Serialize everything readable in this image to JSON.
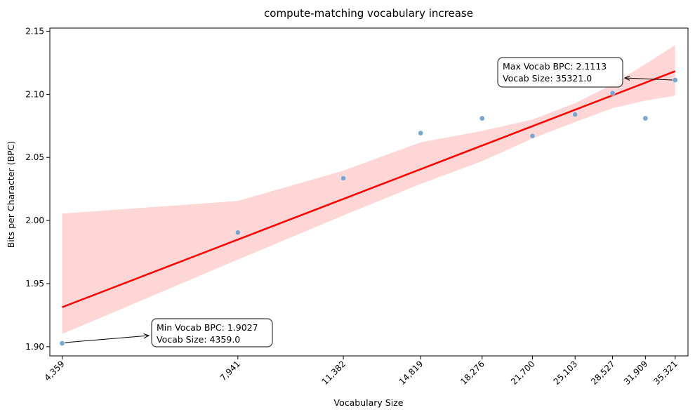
{
  "chart_data": {
    "type": "scatter",
    "title": "compute-matching vocabulary increase",
    "xlabel": "Vocabulary Size",
    "ylabel": "Bits per Character (BPC)",
    "x_scale": "log",
    "xlim": [
      4180,
      36900
    ],
    "ylim": [
      1.8927,
      2.1525
    ],
    "x_ticks": [
      4359,
      7941,
      11382,
      14819,
      18276,
      21700,
      25103,
      28527,
      31909,
      35321
    ],
    "x_tick_labels": [
      "4,359",
      "7,941",
      "11,382",
      "14,819",
      "18,276",
      "21,700",
      "25,103",
      "28,527",
      "31,909",
      "35,321"
    ],
    "y_ticks": [
      1.9,
      1.95,
      2.0,
      2.05,
      2.1,
      2.15
    ],
    "y_tick_labels": [
      "1.90",
      "1.95",
      "2.00",
      "2.05",
      "2.10",
      "2.15"
    ],
    "grid": false,
    "series": [
      {
        "type": "scatter",
        "color": "#6a9fca",
        "points": [
          {
            "x": 4359,
            "y": 1.9027
          },
          {
            "x": 7941,
            "y": 1.9905
          },
          {
            "x": 11382,
            "y": 2.0335
          },
          {
            "x": 14819,
            "y": 2.0693
          },
          {
            "x": 18276,
            "y": 2.081
          },
          {
            "x": 21700,
            "y": 2.067
          },
          {
            "x": 25103,
            "y": 2.084
          },
          {
            "x": 28527,
            "y": 2.101
          },
          {
            "x": 31909,
            "y": 2.081
          },
          {
            "x": 35321,
            "y": 2.1113
          }
        ]
      },
      {
        "type": "line",
        "color": "#ff0000",
        "points": [
          {
            "x": 4359,
            "y": 1.9313
          },
          {
            "x": 35321,
            "y": 2.1183
          }
        ]
      },
      {
        "type": "area",
        "color": "#ffcccc",
        "upper": [
          {
            "x": 4359,
            "y": 2.0055
          },
          {
            "x": 7941,
            "y": 2.0155
          },
          {
            "x": 11382,
            "y": 2.0395
          },
          {
            "x": 14819,
            "y": 2.062
          },
          {
            "x": 18276,
            "y": 2.071
          },
          {
            "x": 21700,
            "y": 2.08
          },
          {
            "x": 25103,
            "y": 2.093
          },
          {
            "x": 28527,
            "y": 2.108
          },
          {
            "x": 31909,
            "y": 2.124
          },
          {
            "x": 35321,
            "y": 2.139
          }
        ],
        "lower": [
          {
            "x": 4359,
            "y": 1.91
          },
          {
            "x": 7941,
            "y": 1.969
          },
          {
            "x": 11382,
            "y": 2.004
          },
          {
            "x": 14819,
            "y": 2.029
          },
          {
            "x": 18276,
            "y": 2.047
          },
          {
            "x": 21700,
            "y": 2.065
          },
          {
            "x": 25103,
            "y": 2.078
          },
          {
            "x": 28527,
            "y": 2.089
          },
          {
            "x": 31909,
            "y": 2.095
          },
          {
            "x": 35321,
            "y": 2.099
          }
        ]
      }
    ],
    "annotations": [
      {
        "lines": [
          "Min Vocab BPC: 1.9027",
          "Vocab Size: 4359.0"
        ],
        "x": 4359,
        "y": 1.9027
      },
      {
        "lines": [
          "Max Vocab BPC: 2.1113",
          "Vocab Size: 35321.0"
        ],
        "x": 35321,
        "y": 2.1113
      }
    ]
  }
}
